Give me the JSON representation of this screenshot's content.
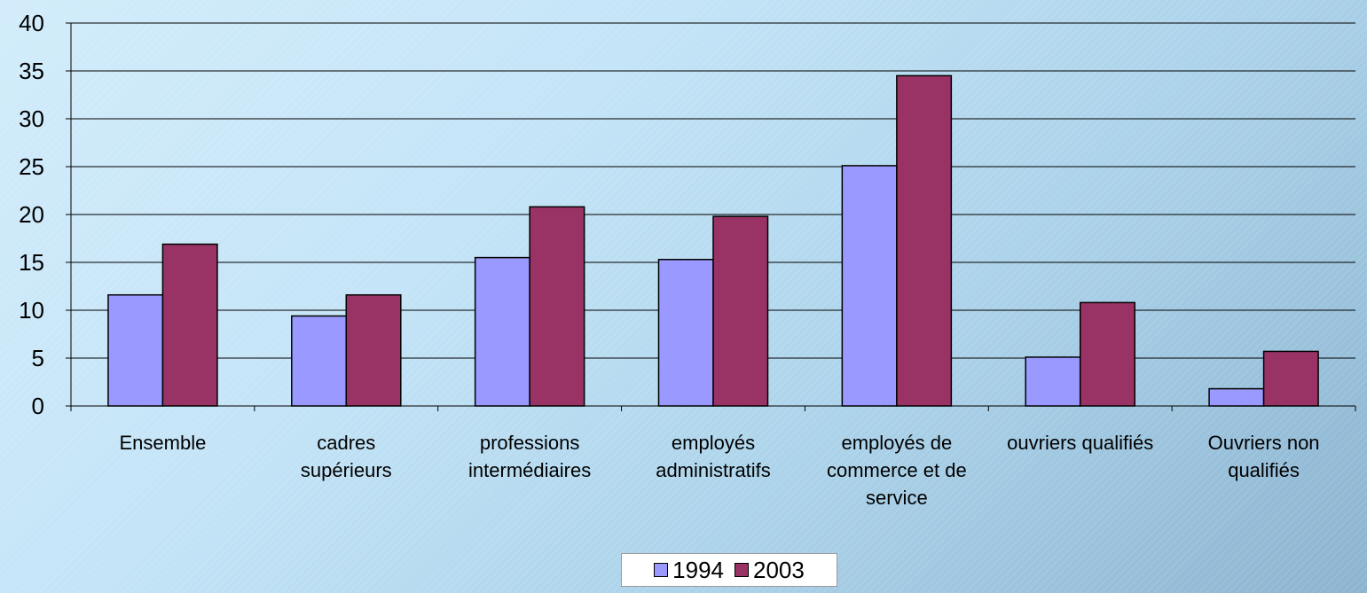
{
  "chart_data": {
    "type": "bar",
    "title": "",
    "xlabel": "",
    "ylabel": "",
    "ylim": [
      0,
      40
    ],
    "yticks": [
      0,
      5,
      10,
      15,
      20,
      25,
      30,
      35,
      40
    ],
    "grid": true,
    "legend_position": "bottom",
    "categories": [
      "Ensemble",
      "cadres supérieurs",
      "professions intermédiaires",
      "employés administratifs",
      "employés de commerce et de service",
      "ouvriers qualifiés",
      "Ouvriers non qualifiés"
    ],
    "category_lines": [
      [
        "Ensemble"
      ],
      [
        "cadres",
        "supérieurs"
      ],
      [
        "professions",
        "intermédiaires"
      ],
      [
        "employés",
        "administratifs"
      ],
      [
        "employés de",
        "commerce et de",
        "service"
      ],
      [
        "ouvriers qualifiés"
      ],
      [
        "Ouvriers non",
        "qualifiés"
      ]
    ],
    "series": [
      {
        "name": "1994",
        "color": "#9999ff",
        "values": [
          11.6,
          9.4,
          15.5,
          15.3,
          25.1,
          5.1,
          1.8
        ]
      },
      {
        "name": "2003",
        "color": "#993366",
        "values": [
          16.9,
          11.6,
          20.8,
          19.8,
          34.5,
          10.8,
          5.7
        ]
      }
    ]
  }
}
